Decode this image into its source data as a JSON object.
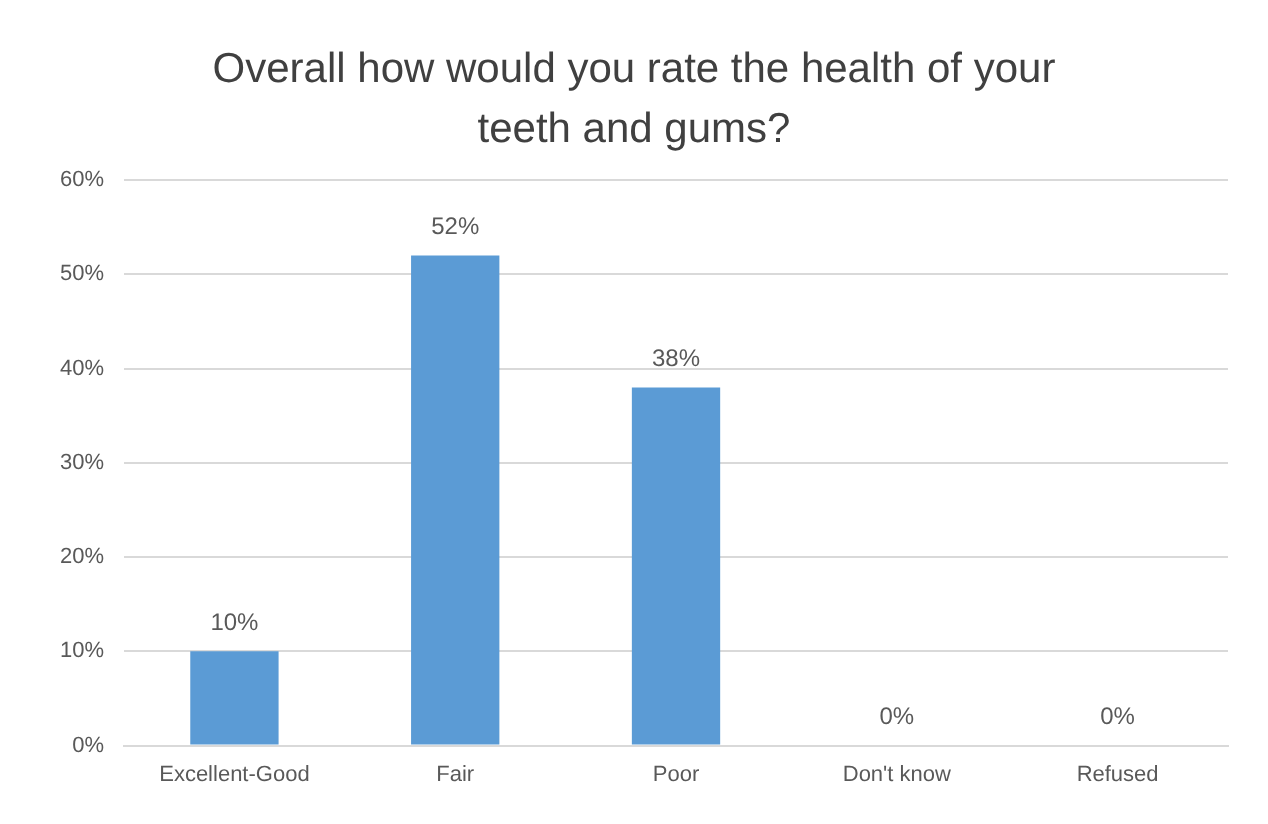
{
  "chart_data": {
    "type": "bar",
    "title": "Overall how would you rate the health of your teeth and gums?",
    "categories": [
      "Excellent-Good",
      "Fair",
      "Poor",
      "Don't know",
      "Refused"
    ],
    "values": [
      10,
      52,
      38,
      0,
      0
    ],
    "value_labels": [
      "10%",
      "52%",
      "38%",
      "0%",
      "0%"
    ],
    "color": "#5b9bd5",
    "ylim": [
      0,
      60
    ],
    "yticks": [
      {
        "value": 0,
        "label": "0%"
      },
      {
        "value": 10,
        "label": "10%"
      },
      {
        "value": 20,
        "label": "20%"
      },
      {
        "value": 30,
        "label": "30%"
      },
      {
        "value": 40,
        "label": "40%"
      },
      {
        "value": 50,
        "label": "50%"
      },
      {
        "value": 60,
        "label": "60%"
      }
    ],
    "grid": "y",
    "legend": false
  }
}
